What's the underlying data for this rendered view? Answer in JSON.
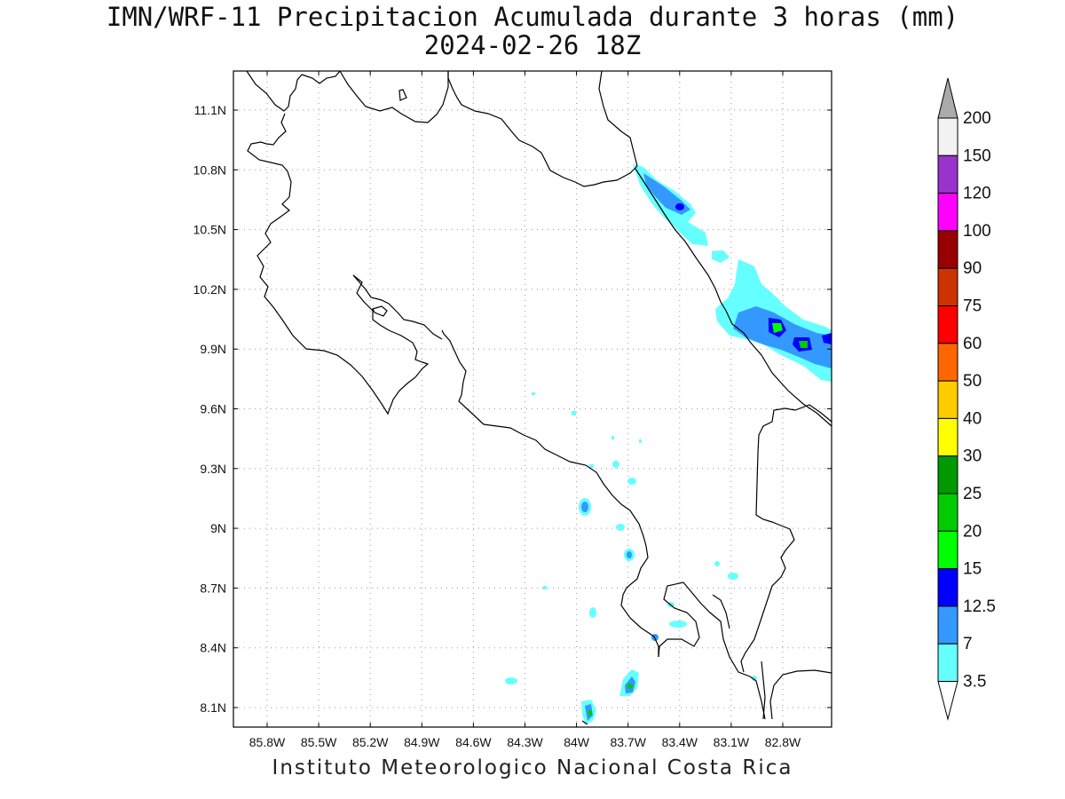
{
  "title": {
    "line1": "IMN/WRF-11 Precipitacion Acumulada durante 3 horas (mm)",
    "line2": "2024-02-26 18Z"
  },
  "footer": "Instituto Meteorologico Nacional Costa Rica",
  "map": {
    "lon_range": [
      -86.0,
      -82.9
    ],
    "lat_range": [
      8.0,
      11.3
    ],
    "x_ticks": [
      "85.8W",
      "85.5W",
      "85.2W",
      "84.9W",
      "84.6W",
      "84.3W",
      "84W",
      "83.7W",
      "83.4W",
      "83.1W",
      "82.8W"
    ],
    "y_ticks": [
      "11.1N",
      "10.8N",
      "10.5N",
      "10.2N",
      "9.9N",
      "9.6N",
      "9.3N",
      "9N",
      "8.7N",
      "8.4N",
      "8.1N"
    ]
  },
  "colorbar": {
    "labels": [
      "200",
      "150",
      "120",
      "100",
      "90",
      "75",
      "60",
      "50",
      "40",
      "30",
      "25",
      "20",
      "15",
      "12.5",
      "7",
      "3.5"
    ],
    "colors": [
      "#f2f2f2",
      "#9933cc",
      "#ff00ff",
      "#990000",
      "#cc3300",
      "#ff0000",
      "#ff6600",
      "#ffcc00",
      "#ffff00",
      "#009900",
      "#00cc00",
      "#00ff00",
      "#0000ff",
      "#3399ff",
      "#66ffff"
    ],
    "top_arrow_color": "#aaaaaa",
    "bottom_arrow_color": "#ffffff"
  },
  "legend_colors": {
    "light": "#66ffff",
    "mid": "#3399ff",
    "blue": "#0000ff",
    "green": "#00ff00",
    "green2": "#00cc00"
  }
}
